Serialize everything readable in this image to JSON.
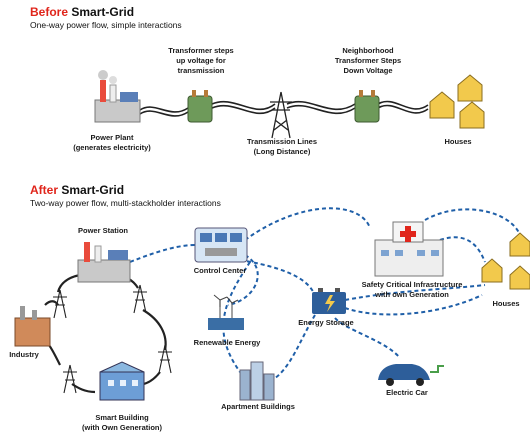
{
  "before": {
    "title_prefix": "Before",
    "title": "Smart-Grid",
    "subtitle": "One-way power flow, simple interactions",
    "labels": [
      {
        "lines": [
          "Transformer steps",
          "up voltage for",
          "transmission"
        ]
      },
      {
        "lines": [
          "Neighborhood",
          "Transformer Steps",
          "Down Voltage"
        ]
      },
      {
        "lines": [
          "Power Plant",
          "(generates electricity)"
        ]
      },
      {
        "lines": [
          "Transmission Lines",
          "(Long Distance)"
        ]
      },
      {
        "lines": [
          "Houses"
        ]
      }
    ]
  },
  "after": {
    "title_prefix": "After",
    "title": "Smart-Grid",
    "subtitle": "Two-way power flow, multi-stackholder interactions",
    "nodes": [
      {
        "lines": [
          "Power Station"
        ]
      },
      {
        "lines": [
          "Control Center"
        ]
      },
      {
        "lines": [
          "Safety Critical Infrastructure",
          "with own Generation"
        ]
      },
      {
        "lines": [
          "Houses"
        ]
      },
      {
        "lines": [
          "Industry"
        ]
      },
      {
        "lines": [
          "Renewable Energy"
        ]
      },
      {
        "lines": [
          "Energy Storage"
        ]
      },
      {
        "lines": [
          "Apartment Buildings"
        ]
      },
      {
        "lines": [
          "Electric Car"
        ]
      },
      {
        "lines": [
          "Smart Building",
          "(with Own Generation)"
        ]
      }
    ]
  }
}
